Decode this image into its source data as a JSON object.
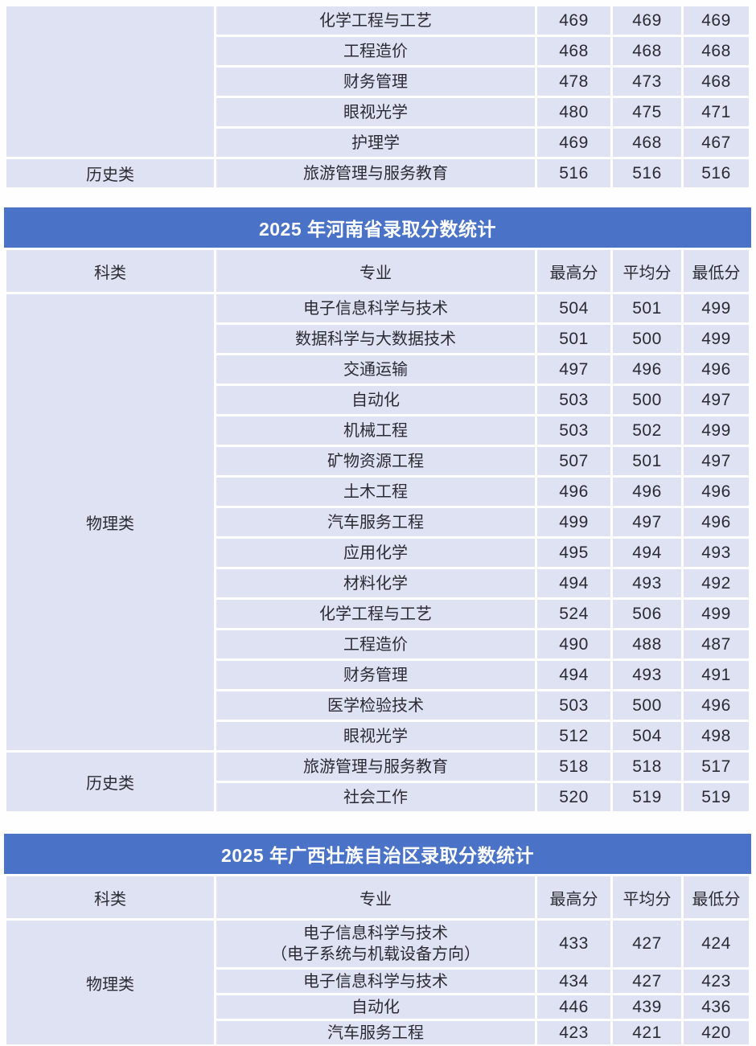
{
  "columns": {
    "category": "科类",
    "major": "专业",
    "max": "最高分",
    "avg": "平均分",
    "min": "最低分"
  },
  "columns_order": [
    "category",
    "major",
    "max",
    "avg",
    "min"
  ],
  "colors": {
    "title_bar_blue": "#4a73c7",
    "title_text": "#ffffff",
    "cell_background": "#dee2f2",
    "body_text": "#2b2b33",
    "page_background": "#fefefe"
  },
  "tables": [
    {
      "id": "partial-top-table",
      "title": "",
      "has_header": false,
      "compact": false,
      "category_valign": "middle",
      "groups": [
        {
          "category": "",
          "rows": [
            {
              "major": "化学工程与工艺",
              "max": "469",
              "avg": "469",
              "min": "469"
            },
            {
              "major": "工程造价",
              "max": "468",
              "avg": "468",
              "min": "468"
            },
            {
              "major": "财务管理",
              "max": "478",
              "avg": "473",
              "min": "468"
            },
            {
              "major": "眼视光学",
              "max": "480",
              "avg": "475",
              "min": "471"
            },
            {
              "major": "护理学",
              "max": "469",
              "avg": "468",
              "min": "467"
            }
          ]
        },
        {
          "category": "历史类",
          "rows": [
            {
              "major": "旅游管理与服务教育",
              "max": "516",
              "avg": "516",
              "min": "516"
            }
          ]
        }
      ]
    },
    {
      "id": "henan-table",
      "title": "2025 年河南省录取分数统计",
      "has_header": true,
      "compact": false,
      "category_valign": "middle",
      "groups": [
        {
          "category": "物理类",
          "rows": [
            {
              "major": "电子信息科学与技术",
              "max": "504",
              "avg": "501",
              "min": "499"
            },
            {
              "major": "数据科学与大数据技术",
              "max": "501",
              "avg": "500",
              "min": "499"
            },
            {
              "major": "交通运输",
              "max": "497",
              "avg": "496",
              "min": "496"
            },
            {
              "major": "自动化",
              "max": "503",
              "avg": "500",
              "min": "497"
            },
            {
              "major": "机械工程",
              "max": "503",
              "avg": "502",
              "min": "499"
            },
            {
              "major": "矿物资源工程",
              "max": "507",
              "avg": "501",
              "min": "497"
            },
            {
              "major": "土木工程",
              "max": "496",
              "avg": "496",
              "min": "496"
            },
            {
              "major": "汽车服务工程",
              "max": "499",
              "avg": "497",
              "min": "496"
            },
            {
              "major": "应用化学",
              "max": "495",
              "avg": "494",
              "min": "493"
            },
            {
              "major": "材料化学",
              "max": "494",
              "avg": "493",
              "min": "492"
            },
            {
              "major": "化学工程与工艺",
              "max": "524",
              "avg": "506",
              "min": "499"
            },
            {
              "major": "工程造价",
              "max": "490",
              "avg": "488",
              "min": "487"
            },
            {
              "major": "财务管理",
              "max": "494",
              "avg": "493",
              "min": "491"
            },
            {
              "major": "医学检验技术",
              "max": "503",
              "avg": "500",
              "min": "496"
            },
            {
              "major": "眼视光学",
              "max": "512",
              "avg": "504",
              "min": "498"
            }
          ]
        },
        {
          "category": "历史类",
          "rows": [
            {
              "major": "旅游管理与服务教育",
              "max": "518",
              "avg": "518",
              "min": "517"
            },
            {
              "major": "社会工作",
              "max": "520",
              "avg": "519",
              "min": "519"
            }
          ]
        }
      ]
    },
    {
      "id": "guangxi-table",
      "title": "2025 年广西壮族自治区录取分数统计",
      "has_header": true,
      "compact": true,
      "category_valign": "top",
      "groups": [
        {
          "category": "物理类",
          "rows": [
            {
              "major_lines": [
                "电子信息科学与技术",
                "（电子系统与机载设备方向）"
              ],
              "max": "433",
              "avg": "427",
              "min": "424"
            },
            {
              "major": "电子信息科学与技术",
              "max": "434",
              "avg": "427",
              "min": "423"
            },
            {
              "major": "自动化",
              "max": "446",
              "avg": "439",
              "min": "436"
            },
            {
              "major": "汽车服务工程",
              "max": "423",
              "avg": "421",
              "min": "420"
            }
          ]
        }
      ]
    }
  ]
}
